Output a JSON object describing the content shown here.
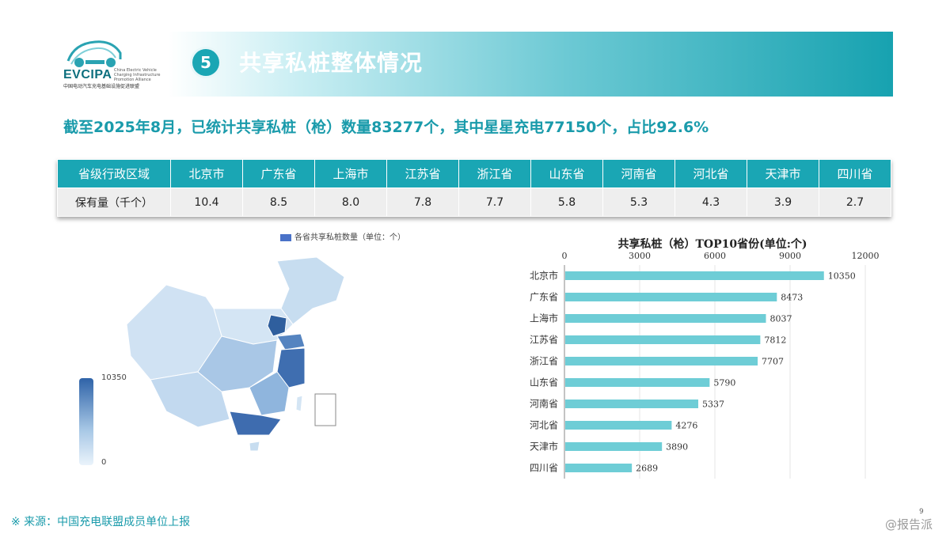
{
  "logo": {
    "abbr": "EVCIPA",
    "en": "China Electric Vehicle Charging Infrastructure Promotion Alliance",
    "cn": "中国电动汽车充电基础设施促进联盟"
  },
  "header": {
    "section_number": "5",
    "title": "共享私桩整体情况"
  },
  "subtitle": "截至2025年8月，已统计共享私桩（枪）数量83277个，其中星星充电77150个，占比92.6%",
  "table": {
    "row_header_label": "省级行政区域",
    "value_row_label": "保有量（千个）",
    "provinces": [
      "北京市",
      "广东省",
      "上海市",
      "江苏省",
      "浙江省",
      "山东省",
      "河南省",
      "河北省",
      "天津市",
      "四川省"
    ],
    "values": [
      "10.4",
      "8.5",
      "8.0",
      "7.8",
      "7.7",
      "5.8",
      "5.3",
      "4.3",
      "3.9",
      "2.7"
    ]
  },
  "map": {
    "legend_label": "各省共享私桩数量（单位：个）",
    "scale_max": "10350",
    "scale_min": "0",
    "colors": {
      "low": "#eaf3fb",
      "mid": "#a8c8e6",
      "high": "#2f63a8",
      "legend": "#4a72c8"
    }
  },
  "chart_data": {
    "type": "bar",
    "orientation": "horizontal",
    "title": "共享私桩（枪）TOP10省份(单位:个)",
    "categories": [
      "北京市",
      "广东省",
      "上海市",
      "江苏省",
      "浙江省",
      "山东省",
      "河南省",
      "河北省",
      "天津市",
      "四川省"
    ],
    "values": [
      10350,
      8473,
      8037,
      7812,
      7707,
      5790,
      5337,
      4276,
      3890,
      2689
    ],
    "xlim": [
      0,
      12000
    ],
    "xticks": [
      "0",
      "3000",
      "6000",
      "9000",
      "12000"
    ],
    "axis_position": "top",
    "grid": true,
    "bar_color": "#6ecdd6"
  },
  "footer": {
    "source": "※ 来源：中国充电联盟成员单位上报",
    "page": "9",
    "watermark": "@报告派"
  }
}
